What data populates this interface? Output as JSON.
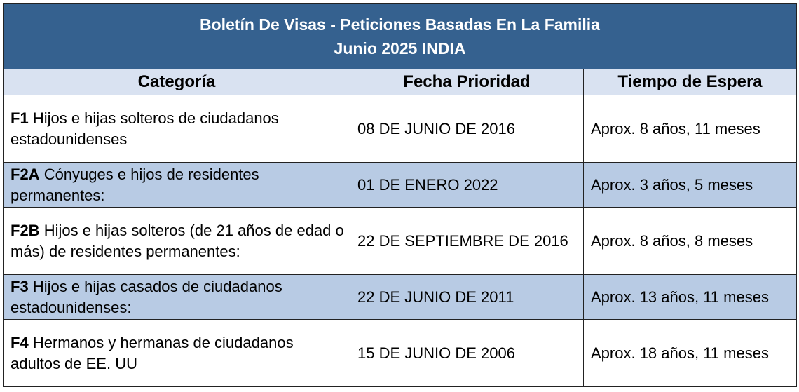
{
  "title": {
    "line1": "Boletín De Visas - Peticiones Basadas En La Familia",
    "line2": "Junio 2025 INDIA"
  },
  "columns": [
    "Categoría",
    "Fecha Prioridad",
    "Tiempo de Espera"
  ],
  "rows": [
    {
      "code": "F1",
      "description": "Hijos e hijas solteros de ciudadanos estadounidenses",
      "priority_date": "08 DE JUNIO DE 2016",
      "wait_time": "Aprox. 8 años, 11 meses"
    },
    {
      "code": "F2A",
      "description": "Cónyuges e hijos de residentes permanentes:",
      "priority_date": "01 DE ENERO 2022",
      "wait_time": "Aprox. 3 años, 5 meses"
    },
    {
      "code": "F2B",
      "description": "Hijos e hijas solteros (de 21 años de edad o más) de residentes permanentes:",
      "priority_date": "22 DE SEPTIEMBRE DE 2016",
      "wait_time": "Aprox. 8 años, 8 meses"
    },
    {
      "code": "F3",
      "description": "Hijos e hijas casados de ciudadanos estadounidenses:",
      "priority_date": "22 DE JUNIO DE 2011",
      "wait_time": "Aprox. 13 años, 11 meses"
    },
    {
      "code": "F4",
      "description": "Hermanos y hermanas de ciudadanos adultos de EE. UU",
      "priority_date": "15 DE JUNIO DE 2006",
      "wait_time": "Aprox. 18 años, 11 meses"
    }
  ]
}
